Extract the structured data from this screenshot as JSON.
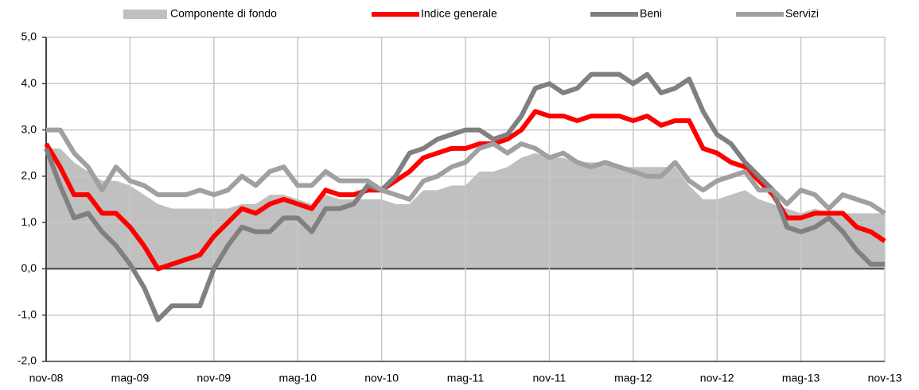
{
  "chart_data": {
    "type": "line",
    "categories": [
      "nov-08",
      null,
      null,
      null,
      null,
      null,
      "mag-09",
      null,
      null,
      null,
      null,
      null,
      "nov-09",
      null,
      null,
      null,
      null,
      null,
      "mag-10",
      null,
      null,
      null,
      null,
      null,
      "nov-10",
      null,
      null,
      null,
      null,
      null,
      "mag-11",
      null,
      null,
      null,
      null,
      null,
      "nov-11",
      null,
      null,
      null,
      null,
      null,
      "mag-12",
      null,
      null,
      null,
      null,
      null,
      "nov-12",
      null,
      null,
      null,
      null,
      null,
      "mag-13",
      null,
      null,
      null,
      null,
      null,
      "nov-13"
    ],
    "ylim": [
      -2,
      5
    ],
    "yticks": [
      {
        "value": -2,
        "label": "-2,0"
      },
      {
        "value": -1,
        "label": "-1,0"
      },
      {
        "value": 0,
        "label": "0,0"
      },
      {
        "value": 1,
        "label": "1,0"
      },
      {
        "value": 2,
        "label": "2,0"
      },
      {
        "value": 3,
        "label": "3,0"
      },
      {
        "value": 4,
        "label": "4,0"
      },
      {
        "value": 5,
        "label": "5,0"
      }
    ],
    "grid": true,
    "legend": "top",
    "series": [
      {
        "name": "Componente di fondo",
        "type": "area",
        "color": "#c0c0c0",
        "values": [
          2.6,
          2.6,
          2.3,
          2.1,
          1.9,
          1.9,
          1.8,
          1.6,
          1.4,
          1.3,
          1.3,
          1.3,
          1.3,
          1.3,
          1.4,
          1.4,
          1.6,
          1.6,
          1.5,
          1.4,
          1.6,
          1.5,
          1.5,
          1.5,
          1.5,
          1.4,
          1.4,
          1.7,
          1.7,
          1.8,
          1.8,
          2.1,
          2.1,
          2.2,
          2.4,
          2.5,
          2.4,
          2.4,
          2.3,
          2.3,
          2.3,
          2.2,
          2.2,
          2.2,
          2.2,
          2.2,
          1.8,
          1.5,
          1.5,
          1.6,
          1.7,
          1.5,
          1.4,
          1.3,
          1.2,
          1.3,
          1.2,
          1.2,
          1.2,
          1.2,
          1.2
        ]
      },
      {
        "name": "Indice generale",
        "type": "line",
        "color": "#ff0000",
        "values": [
          2.7,
          2.2,
          1.6,
          1.6,
          1.2,
          1.2,
          0.9,
          0.5,
          0.0,
          0.1,
          0.2,
          0.3,
          0.7,
          1.0,
          1.3,
          1.2,
          1.4,
          1.5,
          1.4,
          1.3,
          1.7,
          1.6,
          1.6,
          1.7,
          1.7,
          1.9,
          2.1,
          2.4,
          2.5,
          2.6,
          2.6,
          2.7,
          2.7,
          2.8,
          3.0,
          3.4,
          3.3,
          3.3,
          3.2,
          3.3,
          3.3,
          3.3,
          3.2,
          3.3,
          3.1,
          3.2,
          3.2,
          2.6,
          2.5,
          2.3,
          2.2,
          1.9,
          1.6,
          1.1,
          1.1,
          1.2,
          1.2,
          1.2,
          0.9,
          0.8,
          0.6
        ]
      },
      {
        "name": "Beni",
        "type": "line",
        "color": "#808080",
        "values": [
          2.6,
          1.8,
          1.1,
          1.2,
          0.8,
          0.5,
          0.1,
          -0.4,
          -1.1,
          -0.8,
          -0.8,
          -0.8,
          0.0,
          0.5,
          0.9,
          0.8,
          0.8,
          1.1,
          1.1,
          0.8,
          1.3,
          1.3,
          1.4,
          1.8,
          1.7,
          2.0,
          2.5,
          2.6,
          2.8,
          2.9,
          3.0,
          3.0,
          2.8,
          2.9,
          3.3,
          3.9,
          4.0,
          3.8,
          3.9,
          4.2,
          4.2,
          4.2,
          4.0,
          4.2,
          3.8,
          3.9,
          4.1,
          3.4,
          2.9,
          2.7,
          2.3,
          2.0,
          1.7,
          0.9,
          0.8,
          0.9,
          1.1,
          0.8,
          0.4,
          0.1,
          0.1
        ]
      },
      {
        "name": "Servizi",
        "type": "line",
        "color": "#a0a0a0",
        "values": [
          3.0,
          3.0,
          2.5,
          2.2,
          1.7,
          2.2,
          1.9,
          1.8,
          1.6,
          1.6,
          1.6,
          1.7,
          1.6,
          1.7,
          2.0,
          1.8,
          2.1,
          2.2,
          1.8,
          1.8,
          2.1,
          1.9,
          1.9,
          1.9,
          1.7,
          1.6,
          1.5,
          1.9,
          2.0,
          2.2,
          2.3,
          2.6,
          2.7,
          2.5,
          2.7,
          2.6,
          2.4,
          2.5,
          2.3,
          2.2,
          2.3,
          2.2,
          2.1,
          2.0,
          2.0,
          2.3,
          1.9,
          1.7,
          1.9,
          2.0,
          2.1,
          1.7,
          1.7,
          1.4,
          1.7,
          1.6,
          1.3,
          1.6,
          1.5,
          1.4,
          1.2
        ]
      }
    ]
  }
}
